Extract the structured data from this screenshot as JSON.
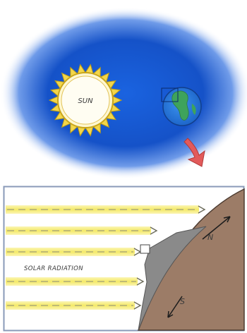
{
  "top_panel": {
    "sun_label": "SUN"
  },
  "bottom_panel": {
    "radiation_label": "SOLAR RADIATION",
    "north_label": "N",
    "south_label": "S"
  },
  "colors": {
    "space_blue": "#1f5fd6",
    "sun_yellow": "#f4dd52",
    "sun_fill": "#fffbe8",
    "ray_yellow": "#f6ef88",
    "earth_brown": "#9a7a66",
    "earth_shadow": "#7b7b7b",
    "arrow_red": "#e25a5a",
    "ocean": "#2a7fe0",
    "land": "#3ea35b"
  }
}
